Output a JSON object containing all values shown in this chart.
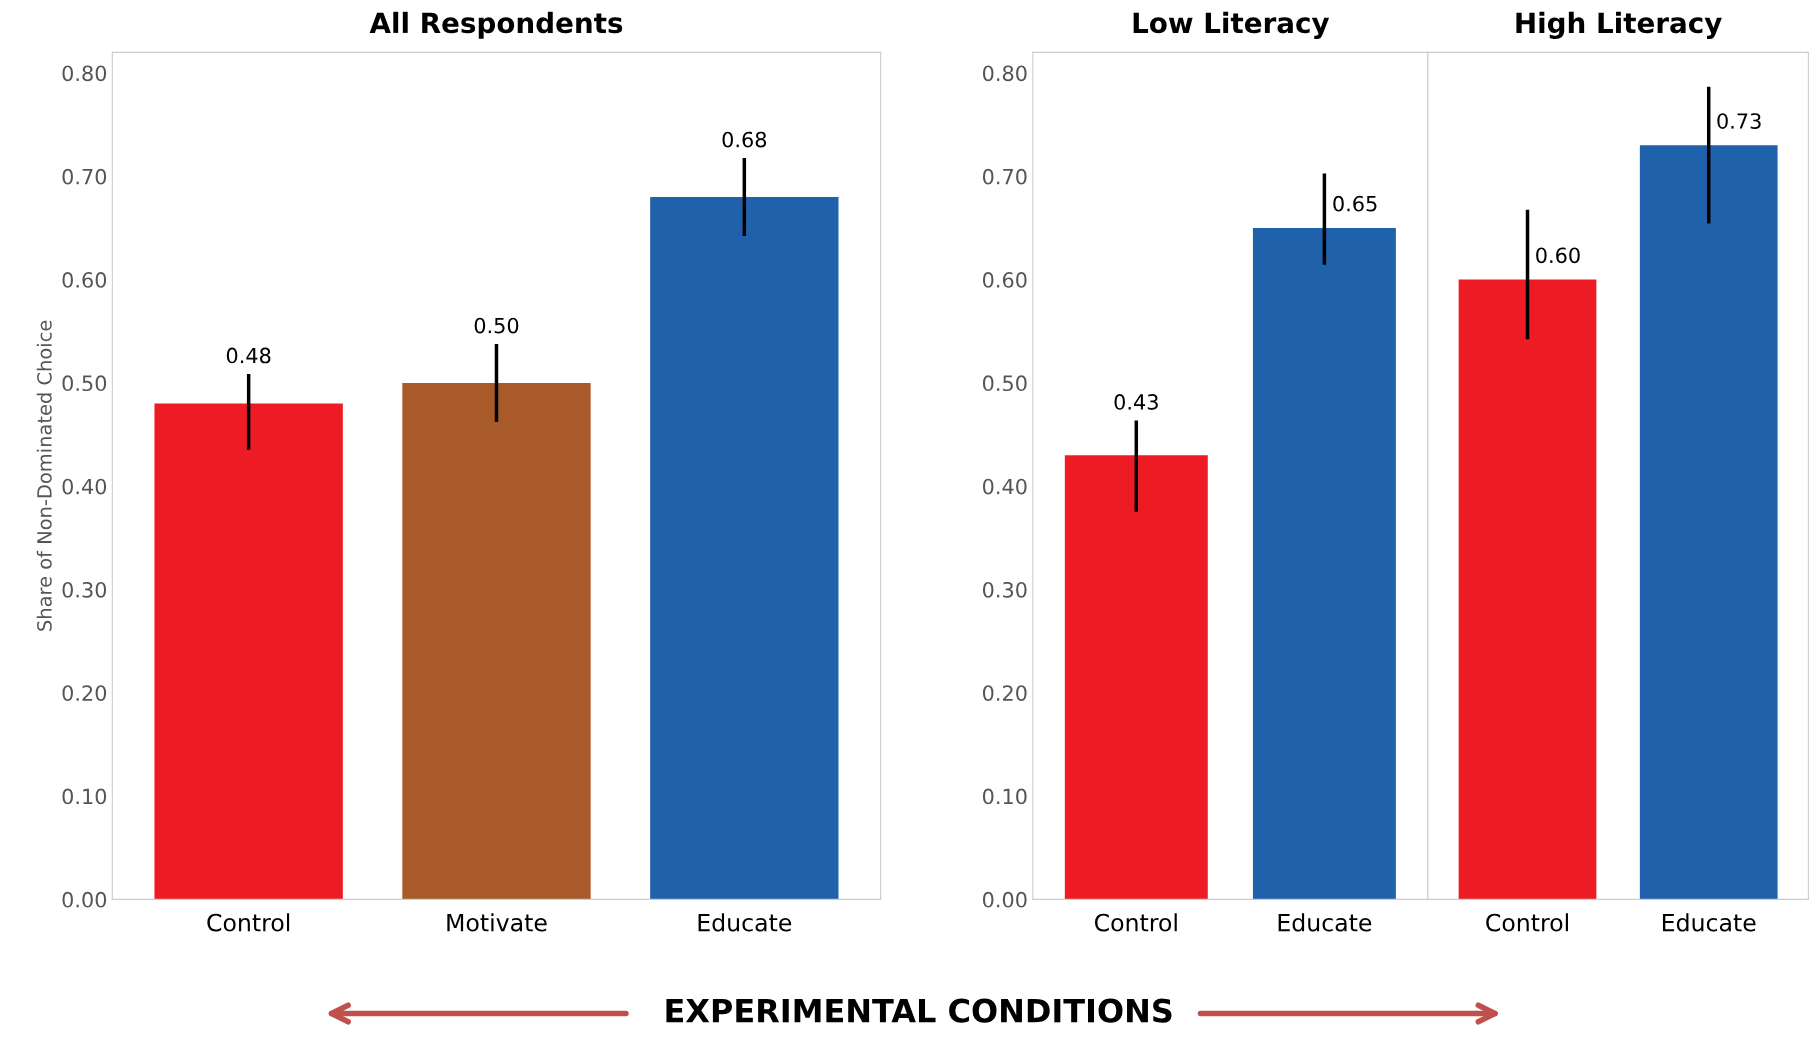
{
  "chart_data": [
    {
      "type": "bar",
      "title": "All Respondents",
      "ylabel": "Share of Non-Dominated Choice",
      "categories": [
        "Control",
        "Motivate",
        "Educate"
      ],
      "values": [
        0.48,
        0.5,
        0.68
      ],
      "colors": [
        "#ed1c24",
        "#a95a2a",
        "#1f62ab"
      ],
      "errors": [
        [
          0.437,
          0.507
        ],
        [
          0.464,
          0.536
        ],
        [
          0.644,
          0.716
        ]
      ],
      "value_labels": [
        "0.48",
        "0.50",
        "0.68"
      ],
      "ylim": [
        0,
        0.82
      ],
      "yticks": [
        {
          "value": 0,
          "label": "0.00"
        },
        {
          "value": 0.1,
          "label": "0.10"
        },
        {
          "value": 0.2,
          "label": "0.20"
        },
        {
          "value": 0.3,
          "label": "0.30"
        },
        {
          "value": 0.4,
          "label": "0.40"
        },
        {
          "value": 0.5,
          "label": "0.50"
        },
        {
          "value": 0.6,
          "label": "0.60"
        },
        {
          "value": 0.7,
          "label": "0.70"
        },
        {
          "value": 0.8,
          "label": "0.80"
        }
      ],
      "annotations": [
        "EXPERIMENTAL CONDITIONS"
      ],
      "grid": false
    },
    {
      "type": "bar",
      "title": "Low Literacy",
      "categories": [
        "Control",
        "Educate"
      ],
      "values": [
        0.43,
        0.65
      ],
      "colors": [
        "#ed1c24",
        "#1f62ab"
      ],
      "errors": [
        [
          0.377,
          0.462
        ],
        [
          0.616,
          0.701
        ]
      ],
      "value_labels": [
        "0.43",
        "0.65"
      ],
      "ylim": [
        0,
        0.82
      ],
      "yticks": [
        {
          "value": 0,
          "label": "0.00"
        },
        {
          "value": 0.1,
          "label": "0.10"
        },
        {
          "value": 0.2,
          "label": "0.20"
        },
        {
          "value": 0.3,
          "label": "0.30"
        },
        {
          "value": 0.4,
          "label": "0.40"
        },
        {
          "value": 0.5,
          "label": "0.50"
        },
        {
          "value": 0.6,
          "label": "0.60"
        },
        {
          "value": 0.7,
          "label": "0.70"
        },
        {
          "value": 0.8,
          "label": "0.80"
        }
      ],
      "grid": false
    },
    {
      "type": "bar",
      "title": "High Literacy",
      "categories": [
        "Control",
        "Educate"
      ],
      "values": [
        0.6,
        0.73
      ],
      "colors": [
        "#ed1c24",
        "#1f62ab"
      ],
      "errors": [
        [
          0.544,
          0.666
        ],
        [
          0.656,
          0.785
        ]
      ],
      "value_labels": [
        "0.60",
        "0.73"
      ],
      "ylim": [
        0,
        0.82
      ],
      "tick_labels": "x",
      "grid": false
    }
  ]
}
